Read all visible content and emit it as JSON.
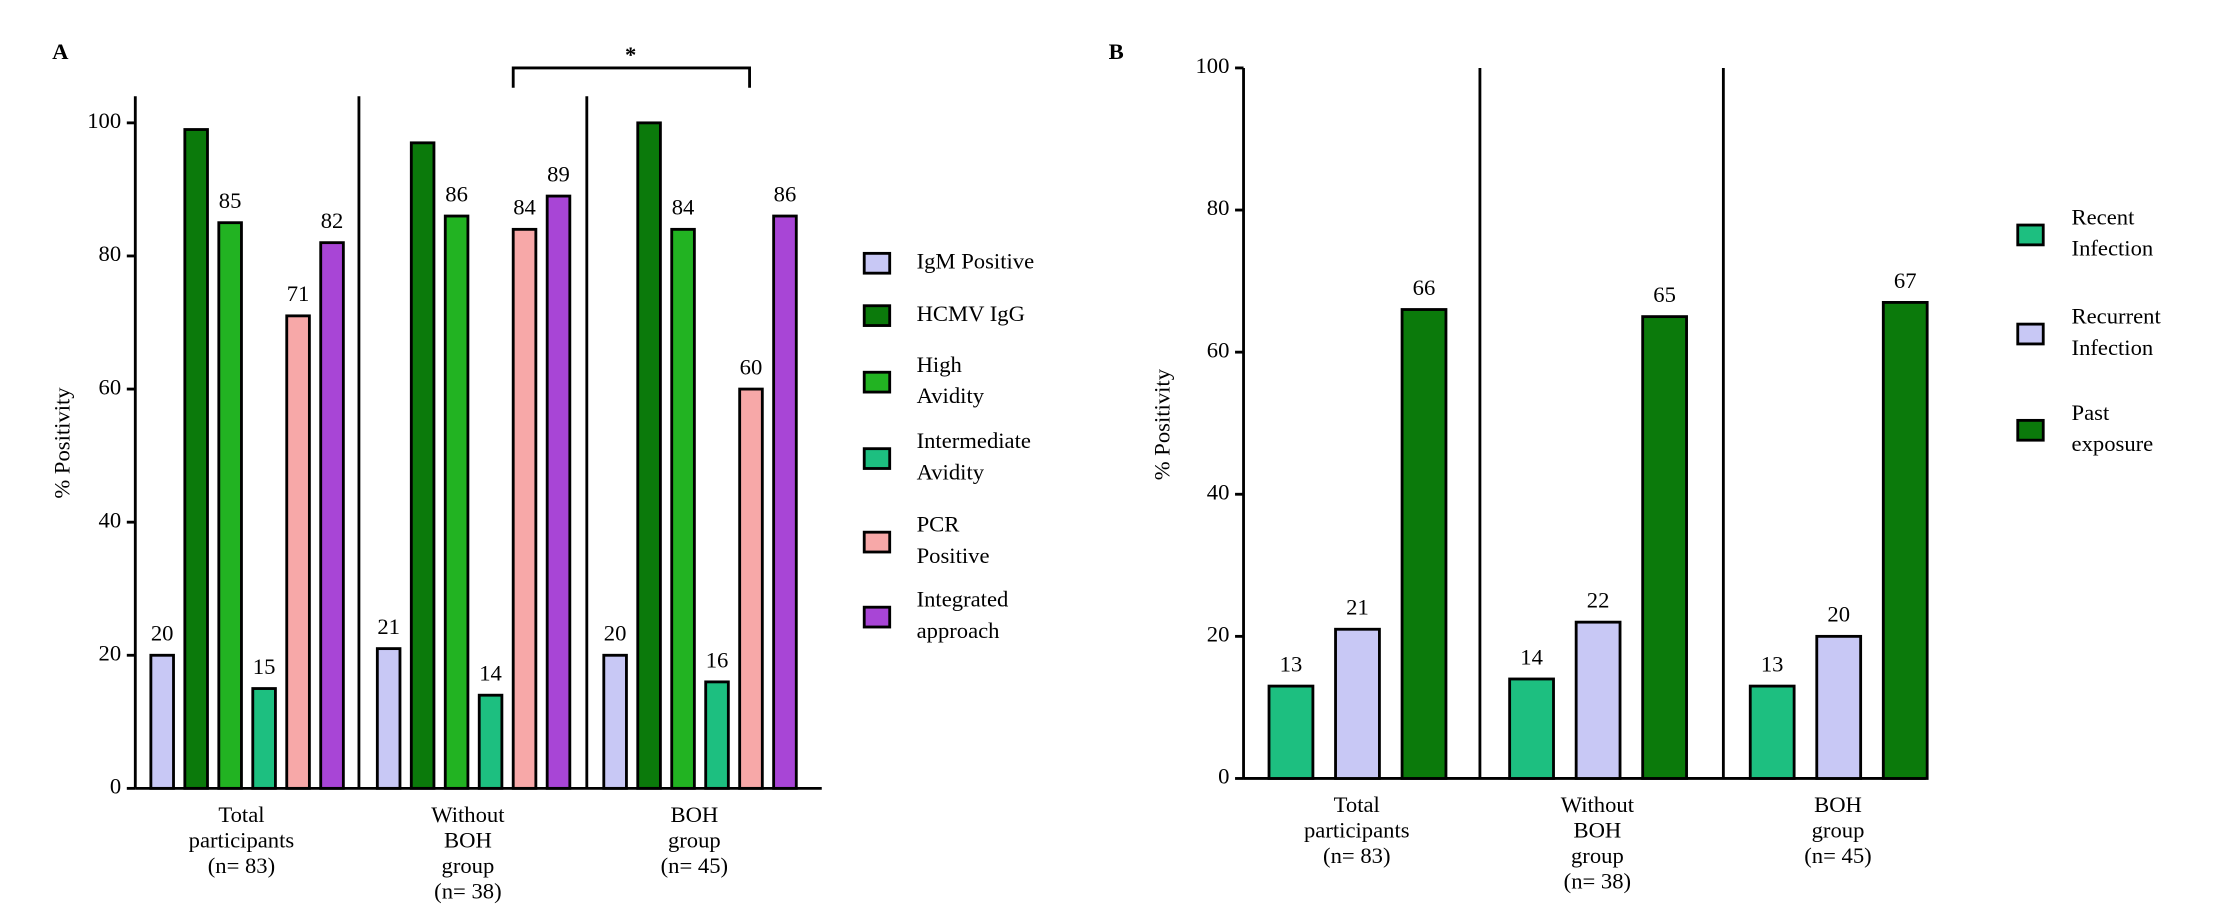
{
  "chart_data": [
    {
      "type": "bar",
      "panel": "A",
      "y_label": "% Positivity",
      "annotation": "*",
      "categories": [
        [
          "Total",
          "participants",
          "(n= 83)"
        ],
        [
          "Without",
          "BOH",
          "group",
          "(n= 38)"
        ],
        [
          "BOH",
          "group",
          "(n= 45)"
        ]
      ],
      "ylim": [
        0,
        104
      ],
      "yticks": [
        0,
        20,
        40,
        60,
        80,
        100
      ],
      "series": [
        {
          "name": [
            "IgM Positive"
          ],
          "color": "#c8c8f5",
          "values": [
            20,
            21,
            20
          ],
          "data_labels": true
        },
        {
          "name": [
            "HCMV IgG"
          ],
          "color": "#0b7a0b",
          "values": [
            99,
            97,
            100
          ],
          "data_labels": false
        },
        {
          "name": [
            "High",
            "Avidity"
          ],
          "color": "#22b322",
          "values": [
            85,
            86,
            84
          ],
          "data_labels": true
        },
        {
          "name": [
            "Intermediate",
            "Avidity"
          ],
          "color": "#1dbf80",
          "values": [
            15,
            14,
            16
          ],
          "data_labels": true
        },
        {
          "name": [
            "PCR",
            "Positive"
          ],
          "color": "#f7a8a8",
          "values": [
            71,
            84,
            60
          ],
          "data_labels": true
        },
        {
          "name": [
            "Integrated",
            "approach"
          ],
          "color": "#a845d6",
          "values": [
            82,
            89,
            86
          ],
          "data_labels": true
        }
      ]
    },
    {
      "type": "bar",
      "panel": "B",
      "y_label": "% Positivity",
      "categories": [
        [
          "Total",
          "participants",
          "(n= 83)"
        ],
        [
          "Without",
          "BOH",
          "group",
          "(n= 38)"
        ],
        [
          "BOH",
          "group",
          "(n= 45)"
        ]
      ],
      "ylim": [
        0,
        100
      ],
      "yticks": [
        0,
        20,
        40,
        60,
        80,
        100
      ],
      "series": [
        {
          "name": [
            "Recent",
            "Infection"
          ],
          "color": "#1dbf80",
          "values": [
            13,
            14,
            13
          ],
          "data_labels": true
        },
        {
          "name": [
            "Recurrent",
            "Infection"
          ],
          "color": "#c8c8f5",
          "values": [
            21,
            22,
            20
          ],
          "data_labels": true
        },
        {
          "name": [
            "Past",
            "exposure"
          ],
          "color": "#0b7a0b",
          "values": [
            66,
            65,
            67
          ],
          "data_labels": true
        }
      ]
    }
  ]
}
